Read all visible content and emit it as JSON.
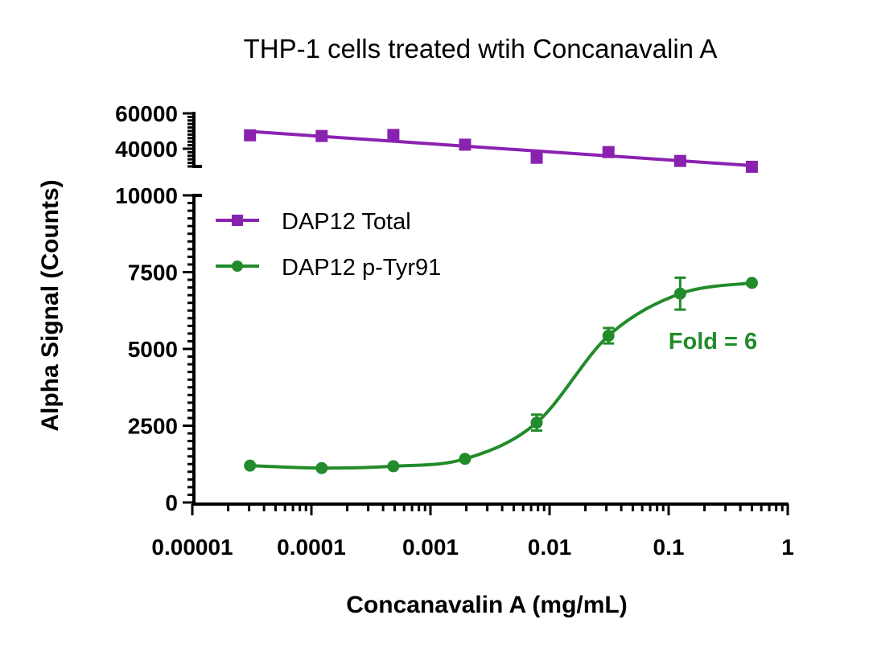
{
  "chart_data": {
    "type": "line",
    "title": "THP-1 cells treated wtih Concanavalin A",
    "xlabel": "Concanavalin A  (mg/mL)",
    "ylabel": "Alpha Signal (Counts)",
    "x_scale": "log",
    "xlim": [
      1e-05,
      1
    ],
    "x_ticks": [
      "0.00001",
      "0.0001",
      "0.001",
      "0.01",
      "0.1",
      "1"
    ],
    "y_axis_break": true,
    "ylim_lower": [
      0,
      10000
    ],
    "y_ticks_lower": [
      "0",
      "2500",
      "5000",
      "7500",
      "10000"
    ],
    "ylim_upper": [
      30000,
      60000
    ],
    "y_ticks_upper": [
      "40000",
      "60000"
    ],
    "grid": false,
    "legend_position": "top-left",
    "x": [
      3.05e-05,
      0.000122,
      0.000488,
      0.00195,
      0.0078,
      0.03125,
      0.125,
      0.5
    ],
    "series": [
      {
        "name": "DAP12 Total",
        "color": "#8a22b0",
        "marker": "square",
        "values": [
          47600,
          47200,
          47800,
          42300,
          34900,
          38100,
          33100,
          29800
        ]
      },
      {
        "name": "DAP12 p-Tyr91",
        "color": "#228b2a",
        "marker": "circle",
        "values": [
          1200,
          1120,
          1180,
          1420,
          2600,
          5430,
          6800,
          7150
        ],
        "errors": [
          0,
          0,
          0,
          0,
          260,
          250,
          520,
          0
        ]
      }
    ],
    "annotations": [
      {
        "text": "Fold = 6",
        "color": "#228b2a"
      }
    ]
  }
}
